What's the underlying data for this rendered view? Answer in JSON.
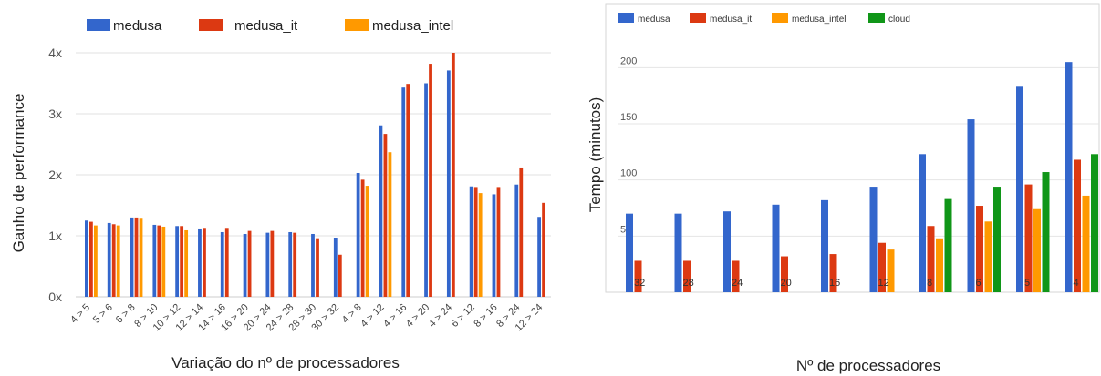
{
  "chart_data": [
    {
      "type": "bar",
      "title": "",
      "xlabel": "Variação do nº de processadores",
      "ylabel": "Ganho de performance",
      "ylim": [
        0,
        4
      ],
      "yticks": [
        "0x",
        "1x",
        "2x",
        "3x",
        "4x"
      ],
      "grid": true,
      "legend_position": "top-left",
      "categories": [
        "4 > 5",
        "5 > 6",
        "6 > 8",
        "8 > 10",
        "10 > 12",
        "12 > 14",
        "14 > 16",
        "16 > 20",
        "20 > 24",
        "24 > 28",
        "28 > 30",
        "30 > 32",
        "4 > 8",
        "4 > 12",
        "4 > 16",
        "4 > 20",
        "4 > 24",
        "6 > 12",
        "8 > 16",
        "8 > 24",
        "12 > 24"
      ],
      "series": [
        {
          "name": "medusa",
          "color": "#3366cc",
          "values": [
            1.25,
            1.21,
            1.3,
            1.18,
            1.16,
            1.12,
            1.06,
            1.03,
            1.05,
            1.06,
            1.03,
            0.97,
            2.03,
            2.81,
            3.43,
            3.5,
            3.71,
            1.81,
            1.68,
            1.84,
            1.31
          ]
        },
        {
          "name": "medusa_it",
          "color": "#dc3912",
          "values": [
            1.23,
            1.19,
            1.3,
            1.17,
            1.16,
            1.13,
            1.13,
            1.08,
            1.08,
            1.05,
            0.96,
            0.69,
            1.92,
            2.67,
            3.49,
            3.82,
            4.0,
            1.8,
            1.8,
            2.12,
            1.54
          ]
        },
        {
          "name": "medusa_intel",
          "color": "#ff9900",
          "values": [
            1.17,
            1.17,
            1.28,
            1.15,
            1.09,
            null,
            null,
            null,
            null,
            null,
            null,
            null,
            1.82,
            2.37,
            null,
            null,
            null,
            1.7,
            null,
            null,
            null
          ]
        }
      ]
    },
    {
      "type": "bar",
      "title": "",
      "xlabel": "Nº de processadores",
      "ylabel": "Tempo (minutos)",
      "ylim": [
        0,
        220
      ],
      "yticks": [
        "50",
        "100",
        "150",
        "200"
      ],
      "grid": true,
      "legend_position": "top-left",
      "categories": [
        "32",
        "28",
        "24",
        "20",
        "16",
        "12",
        "8",
        "6",
        "5",
        "4"
      ],
      "series": [
        {
          "name": "medusa",
          "color": "#3366cc",
          "values": [
            70,
            70,
            72,
            78,
            82,
            94,
            123,
            154,
            183,
            205
          ]
        },
        {
          "name": "medusa_it",
          "color": "#dc3912",
          "values": [
            28,
            28,
            28,
            32,
            34,
            44,
            59,
            77,
            96,
            118
          ]
        },
        {
          "name": "medusa_intel",
          "color": "#ff9900",
          "values": [
            null,
            null,
            null,
            null,
            null,
            38,
            48,
            63,
            74,
            86
          ]
        },
        {
          "name": "cloud",
          "color": "#109618",
          "values": [
            null,
            null,
            null,
            null,
            null,
            null,
            83,
            94,
            107,
            123
          ]
        }
      ]
    }
  ]
}
